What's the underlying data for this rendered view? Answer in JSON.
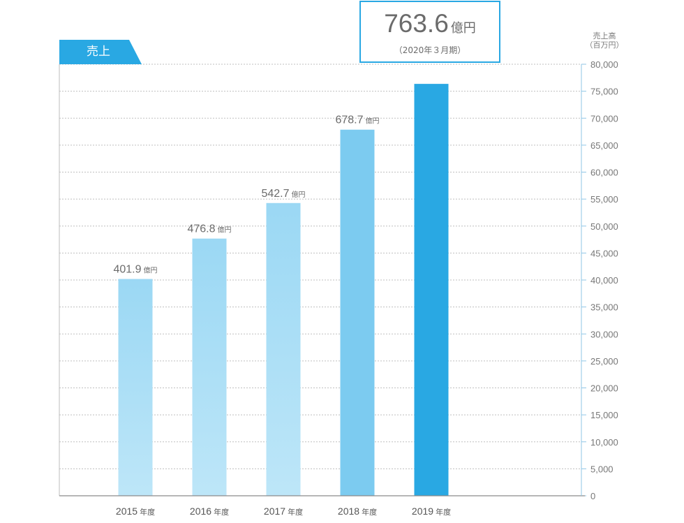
{
  "tab_label": "売上",
  "callout": {
    "value": "763.6",
    "unit": "億円",
    "note": "（2020年３月期）"
  },
  "colors": {
    "accent": "#29a8e3",
    "bar_light_top": "#9bd8f4",
    "bar_light_bottom": "#bde6f8",
    "bar_2018": "#7ccbf0",
    "bar_2019": "#29a8e3",
    "grid": "#bfbfbf",
    "axis": "#8fc6e6",
    "text": "#6b6b6b"
  },
  "chart_data": {
    "type": "bar",
    "categories": [
      "2015",
      "2016",
      "2017",
      "2018",
      "2019"
    ],
    "category_suffix": "年度",
    "values": [
      40190,
      47680,
      54270,
      67870,
      76360
    ],
    "data_labels": [
      "401.9",
      "476.8",
      "542.7",
      "678.7",
      ""
    ],
    "data_label_unit": "億円",
    "ylabel_line1": "売上高",
    "ylabel_line2": "（百万円）",
    "ylim": [
      0,
      80000
    ],
    "yticks": [
      0,
      5000,
      10000,
      15000,
      20000,
      25000,
      30000,
      35000,
      40000,
      45000,
      50000,
      55000,
      60000,
      65000,
      70000,
      75000,
      80000
    ],
    "ytick_labels": [
      "0",
      "5,000",
      "10,000",
      "15,000",
      "20,000",
      "25,000",
      "30,000",
      "35,000",
      "40,000",
      "45,000",
      "50,000",
      "55,000",
      "60,000",
      "65,000",
      "70,000",
      "75,000",
      "80,000"
    ],
    "grid": true,
    "y_axis_side": "right"
  }
}
